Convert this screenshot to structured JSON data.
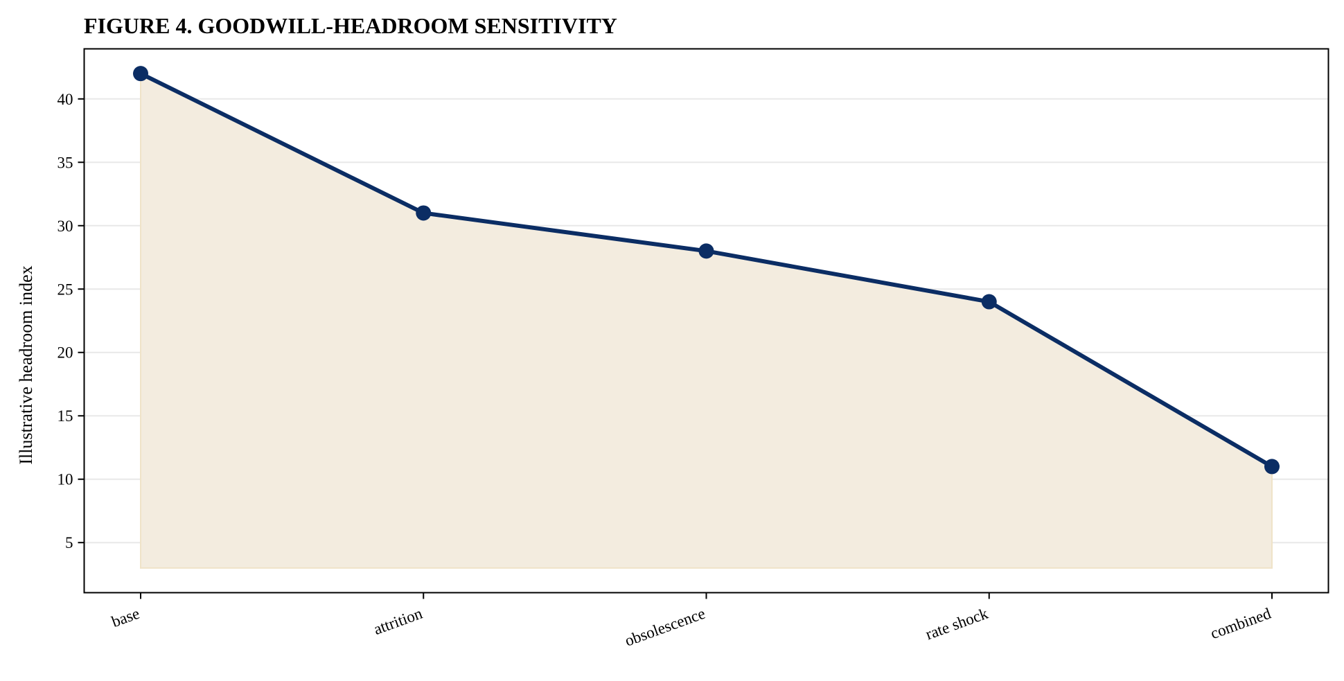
{
  "chart_data": {
    "type": "area",
    "title": "FIGURE 4. GOODWILL-HEADROOM SENSITIVITY",
    "xlabel": "",
    "ylabel": "Illustrative headroom index",
    "categories": [
      "base",
      "attrition",
      "obsolescence",
      "rate shock",
      "combined"
    ],
    "series": [
      {
        "values": [
          42,
          31,
          28,
          24,
          11
        ],
        "color": "#0b2d64"
      }
    ],
    "fill_baseline": 3,
    "fill_color": "#f3ecdf",
    "ylim": [
      1.05,
      43.95
    ],
    "yticks": [
      5,
      10,
      15,
      20,
      25,
      30,
      35,
      40
    ],
    "grid": "horizontal",
    "legend": "none"
  }
}
